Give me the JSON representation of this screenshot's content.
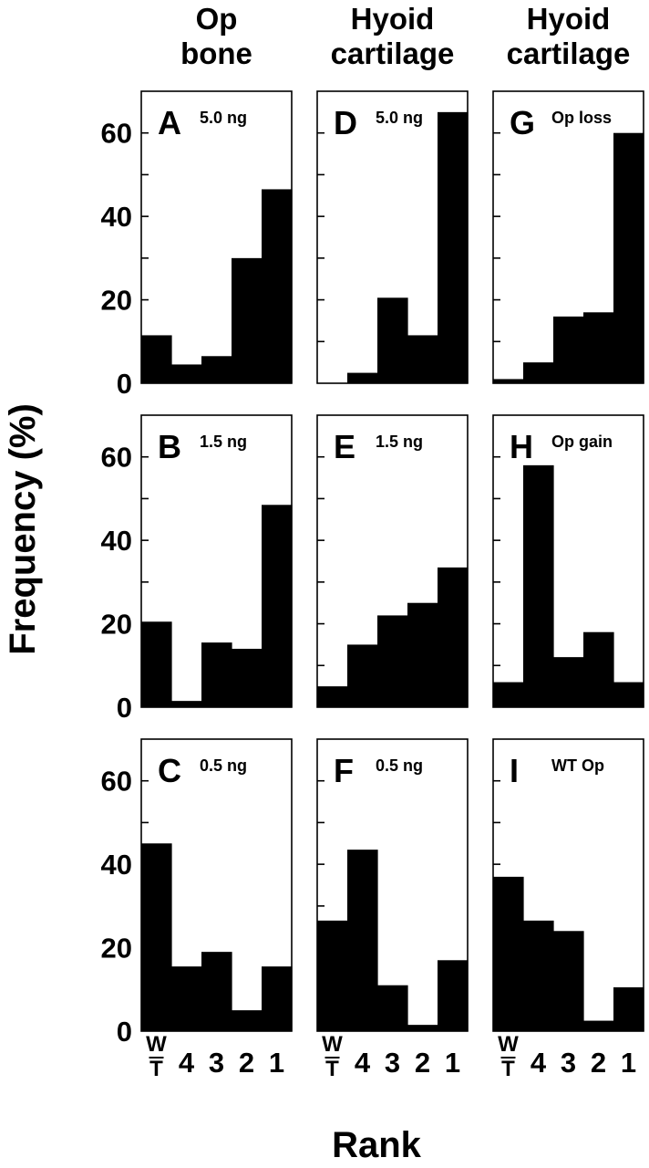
{
  "figure": {
    "y_axis_label": "Frequency (%)",
    "x_axis_label": "Rank",
    "column_headers": [
      [
        "Op",
        "bone"
      ],
      [
        "Hyoid",
        "cartilage"
      ],
      [
        "Hyoid",
        "cartilage"
      ]
    ]
  },
  "chart_data": [
    {
      "type": "bar",
      "letter": "A",
      "label": "5.0 ng",
      "categories": [
        "WT",
        "4",
        "3",
        "2",
        "1"
      ],
      "values": [
        11.5,
        4.5,
        6.5,
        30,
        46.5
      ],
      "ylim": [
        0,
        70
      ],
      "yticks": [
        0,
        20,
        40,
        60
      ]
    },
    {
      "type": "bar",
      "letter": "B",
      "label": "1.5 ng",
      "categories": [
        "WT",
        "4",
        "3",
        "2",
        "1"
      ],
      "values": [
        20.5,
        1.5,
        15.5,
        14,
        48.5
      ],
      "ylim": [
        0,
        70
      ],
      "yticks": [
        0,
        20,
        40,
        60
      ]
    },
    {
      "type": "bar",
      "letter": "C",
      "label": "0.5 ng",
      "categories": [
        "WT",
        "4",
        "3",
        "2",
        "1"
      ],
      "values": [
        45,
        15.5,
        19,
        5,
        15.5
      ],
      "ylim": [
        0,
        70
      ],
      "yticks": [
        0,
        20,
        40,
        60
      ]
    },
    {
      "type": "bar",
      "letter": "D",
      "label": "5.0 ng",
      "categories": [
        "WT",
        "4",
        "3",
        "2",
        "1"
      ],
      "values": [
        0,
        2.5,
        20.5,
        11.5,
        65
      ],
      "ylim": [
        0,
        70
      ],
      "yticks": [
        0,
        20,
        40,
        60
      ]
    },
    {
      "type": "bar",
      "letter": "E",
      "label": "1.5 ng",
      "categories": [
        "WT",
        "4",
        "3",
        "2",
        "1"
      ],
      "values": [
        5,
        15,
        22,
        25,
        33.5
      ],
      "ylim": [
        0,
        70
      ],
      "yticks": [
        0,
        20,
        40,
        60
      ]
    },
    {
      "type": "bar",
      "letter": "F",
      "label": "0.5 ng",
      "categories": [
        "WT",
        "4",
        "3",
        "2",
        "1"
      ],
      "values": [
        26.5,
        43.5,
        11,
        1.5,
        17
      ],
      "ylim": [
        0,
        70
      ],
      "yticks": [
        0,
        20,
        40,
        60
      ]
    },
    {
      "type": "bar",
      "letter": "G",
      "label": "Op loss",
      "categories": [
        "WT",
        "4",
        "3",
        "2",
        "1"
      ],
      "values": [
        1,
        5,
        16,
        17,
        60
      ],
      "ylim": [
        0,
        70
      ],
      "yticks": [
        0,
        20,
        40,
        60
      ]
    },
    {
      "type": "bar",
      "letter": "H",
      "label": "Op gain",
      "categories": [
        "WT",
        "4",
        "3",
        "2",
        "1"
      ],
      "values": [
        6,
        58,
        12,
        18,
        6
      ],
      "ylim": [
        0,
        70
      ],
      "yticks": [
        0,
        20,
        40,
        60
      ]
    },
    {
      "type": "bar",
      "letter": "I",
      "label": "WT Op",
      "categories": [
        "WT",
        "4",
        "3",
        "2",
        "1"
      ],
      "values": [
        37,
        26.5,
        24,
        2.5,
        10.5
      ],
      "ylim": [
        0,
        70
      ],
      "yticks": [
        0,
        20,
        40,
        60
      ]
    }
  ]
}
